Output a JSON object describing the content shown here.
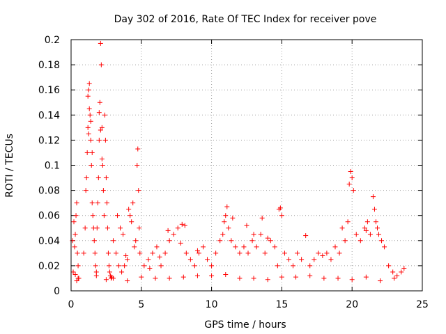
{
  "chart_data": {
    "type": "scatter",
    "title": "Day 302 of 2016, Rate Of TEC Index for receiver pove",
    "xlabel": "GPS time / hours",
    "ylabel": "ROTI / TECUs",
    "xlim": [
      0,
      25
    ],
    "ylim": [
      0,
      0.2
    ],
    "xticks": [
      0,
      5,
      10,
      15,
      20,
      25
    ],
    "yticks": [
      0,
      0.02,
      0.04,
      0.06,
      0.08,
      0.1,
      0.12,
      0.14,
      0.16,
      0.18,
      0.2
    ],
    "xtick_labels": [
      "0",
      "5",
      "10",
      "15",
      "20",
      "25"
    ],
    "ytick_labels": [
      "0",
      "0.02",
      "0.04",
      "0.06",
      "0.08",
      "0.1",
      "0.12",
      "0.14",
      "0.16",
      "0.18",
      "0.2"
    ],
    "grid": true,
    "marker": "+",
    "color": "#ff0000",
    "series": [
      {
        "name": "ROTI",
        "x": [
          0.1,
          0.2,
          0.25,
          0.3,
          0.35,
          0.4,
          0.45,
          0.5,
          0.55,
          0.15,
          0.3,
          0.4,
          0.9,
          1.0,
          1.05,
          1.1,
          1.15,
          1.2,
          1.25,
          1.3,
          1.35,
          1.4,
          1.45,
          1.5,
          1.55,
          1.6,
          1.65,
          1.7,
          1.75,
          1.8,
          1.85,
          1.9,
          1.95,
          2.0,
          2.05,
          2.1,
          2.15,
          2.2,
          2.25,
          2.3,
          2.35,
          2.4,
          2.45,
          2.5,
          2.55,
          2.6,
          2.65,
          2.7,
          2.75,
          2.8,
          2.85,
          2.9,
          1.2,
          1.3,
          1.4,
          1.25,
          2.0,
          2.1,
          2.2,
          1.5,
          3.0,
          3.2,
          3.4,
          3.6,
          3.8,
          4.0,
          4.2,
          4.4,
          4.6,
          4.7,
          4.75,
          4.8,
          4.85,
          4.9,
          3.5,
          3.7,
          4.1,
          4.3,
          4.5,
          3.3,
          3.9,
          5.2,
          5.5,
          5.8,
          6.1,
          6.4,
          6.7,
          7.0,
          7.3,
          7.6,
          7.9,
          8.2,
          8.5,
          8.8,
          9.1,
          9.4,
          9.7,
          6.9,
          7.8,
          8.1,
          9.0,
          5.6,
          6.3,
          10.0,
          10.3,
          10.6,
          10.8,
          11.0,
          11.1,
          11.2,
          11.4,
          11.7,
          12.0,
          12.3,
          12.6,
          12.9,
          13.2,
          13.5,
          13.8,
          14.0,
          14.2,
          14.5,
          14.7,
          14.8,
          14.9,
          15.0,
          15.2,
          15.5,
          15.8,
          16.1,
          16.4,
          16.7,
          17.0,
          17.3,
          17.6,
          17.9,
          11.5,
          12.5,
          13.0,
          13.6,
          10.9,
          18.2,
          18.5,
          18.8,
          19.1,
          19.3,
          19.5,
          19.7,
          19.9,
          20.0,
          20.1,
          20.3,
          20.6,
          20.9,
          21.1,
          21.3,
          21.5,
          21.6,
          21.7,
          21.9,
          22.1,
          22.3,
          22.6,
          22.9,
          23.2,
          23.5,
          23.7,
          19.8,
          21.0,
          21.8,
          0.5,
          2.5,
          4.0,
          6.0,
          8.0,
          10.0,
          12.0,
          14.0,
          16.0,
          18.0,
          20.0,
          22.0,
          23.0,
          1.8,
          3.0,
          5.0,
          7.0,
          9.0,
          11.0,
          13.0,
          15.0,
          17.0,
          19.0,
          21.0
        ],
        "y": [
          0.04,
          0.055,
          0.035,
          0.045,
          0.06,
          0.07,
          0.03,
          0.02,
          0.01,
          0.015,
          0.013,
          0.008,
          0.03,
          0.05,
          0.08,
          0.09,
          0.11,
          0.13,
          0.16,
          0.165,
          0.14,
          0.12,
          0.1,
          0.07,
          0.06,
          0.05,
          0.04,
          0.03,
          0.02,
          0.015,
          0.05,
          0.07,
          0.09,
          0.12,
          0.15,
          0.197,
          0.18,
          0.13,
          0.1,
          0.08,
          0.06,
          0.14,
          0.12,
          0.09,
          0.07,
          0.05,
          0.03,
          0.02,
          0.015,
          0.012,
          0.01,
          0.011,
          0.155,
          0.145,
          0.135,
          0.125,
          0.142,
          0.128,
          0.105,
          0.11,
          0.04,
          0.03,
          0.02,
          0.015,
          0.02,
          0.025,
          0.06,
          0.07,
          0.04,
          0.1,
          0.113,
          0.08,
          0.05,
          0.03,
          0.05,
          0.045,
          0.065,
          0.055,
          0.035,
          0.06,
          0.028,
          0.02,
          0.025,
          0.03,
          0.035,
          0.02,
          0.03,
          0.04,
          0.045,
          0.05,
          0.053,
          0.03,
          0.025,
          0.02,
          0.03,
          0.035,
          0.025,
          0.048,
          0.038,
          0.052,
          0.032,
          0.018,
          0.027,
          0.02,
          0.03,
          0.04,
          0.045,
          0.06,
          0.067,
          0.05,
          0.04,
          0.035,
          0.03,
          0.035,
          0.03,
          0.04,
          0.035,
          0.045,
          0.03,
          0.042,
          0.04,
          0.035,
          0.02,
          0.065,
          0.066,
          0.06,
          0.03,
          0.025,
          0.02,
          0.03,
          0.025,
          0.044,
          0.02,
          0.025,
          0.03,
          0.028,
          0.058,
          0.052,
          0.045,
          0.058,
          0.055,
          0.03,
          0.025,
          0.035,
          0.03,
          0.05,
          0.04,
          0.055,
          0.095,
          0.09,
          0.08,
          0.045,
          0.04,
          0.05,
          0.055,
          0.045,
          0.075,
          0.065,
          0.055,
          0.045,
          0.04,
          0.035,
          0.02,
          0.015,
          0.012,
          0.015,
          0.018,
          0.085,
          0.048,
          0.05,
          0.01,
          0.009,
          0.008,
          0.01,
          0.011,
          0.012,
          0.01,
          0.009,
          0.011,
          0.01,
          0.009,
          0.008,
          0.01,
          0.012,
          0.01,
          0.011,
          0.01,
          0.012,
          0.013,
          0.01,
          0.011,
          0.012,
          0.01,
          0.011
        ]
      }
    ]
  }
}
